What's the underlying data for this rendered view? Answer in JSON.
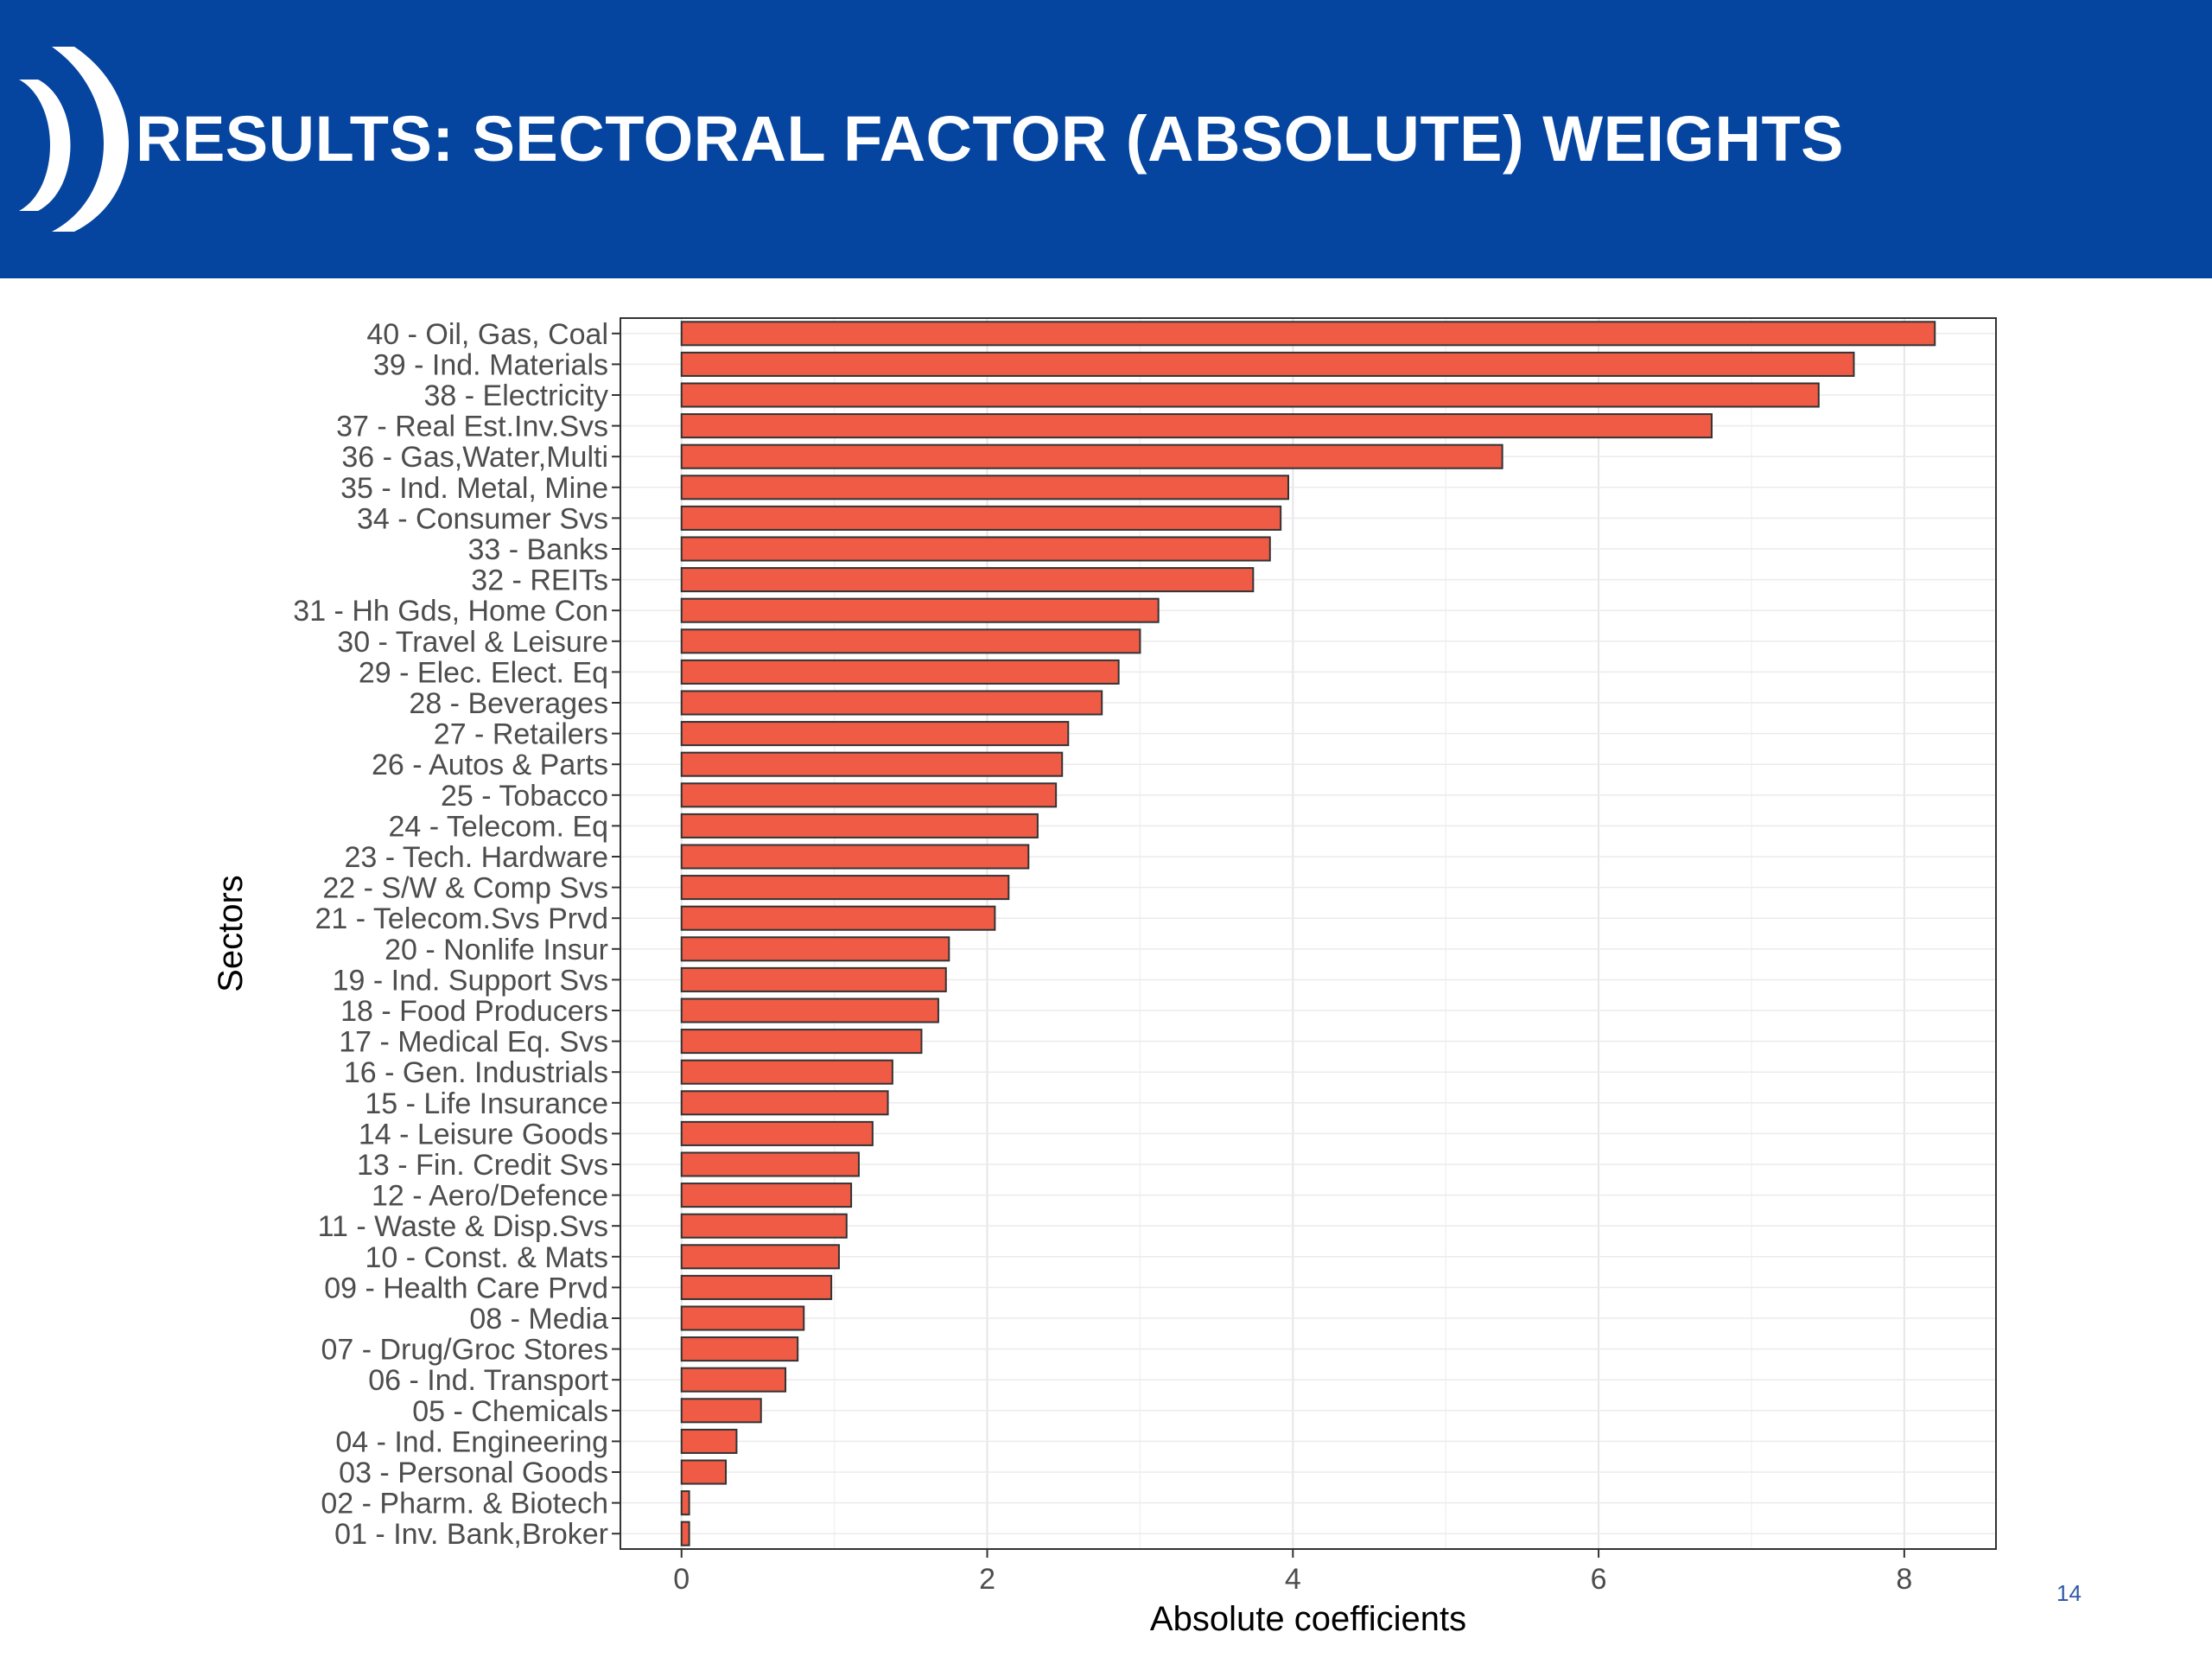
{
  "slide": {
    "title": "RESULTS: SECTORAL FACTOR (ABSOLUTE) WEIGHTS",
    "page_number": "14",
    "header_color": "#0545a0",
    "accent_color": "#ffffff"
  },
  "chart_data": {
    "type": "bar",
    "orientation": "horizontal",
    "title": "",
    "xlabel": "Absolute coefficients",
    "ylabel": "Sectors",
    "xlim": [
      -0.4,
      8.6
    ],
    "xticks": [
      0,
      2,
      4,
      6,
      8
    ],
    "grid": true,
    "bar_color": "#ef5b45",
    "categories": [
      "40 - Oil, Gas, Coal",
      "39 - Ind. Materials",
      "38 - Electricity",
      "37 - Real Est.Inv.Svs",
      "36 - Gas,Water,Multi",
      "35 - Ind. Metal, Mine",
      "34 - Consumer Svs",
      "33 - Banks",
      "32 - REITs",
      "31 - Hh Gds, Home Con",
      "30 - Travel & Leisure",
      "29 - Elec. Elect. Eq",
      "28 - Beverages",
      "27 - Retailers",
      "26 - Autos & Parts",
      "25 - Tobacco",
      "24 - Telecom. Eq",
      "23 - Tech. Hardware",
      "22 - S/W & Comp Svs",
      "21 - Telecom.Svs Prvd",
      "20 - Nonlife Insur",
      "19 - Ind. Support Svs",
      "18 - Food Producers",
      "17 - Medical Eq. Svs",
      "16 - Gen. Industrials",
      "15 - Life Insurance",
      "14 - Leisure Goods",
      "13 - Fin. Credit Svs",
      "12 - Aero/Defence",
      "11 - Waste & Disp.Svs",
      "10 - Const. & Mats",
      "09 - Health Care Prvd",
      "08 - Media",
      "07 - Drug/Groc Stores",
      "06 - Ind. Transport",
      "05 - Chemicals",
      "04 - Ind. Engineering",
      "03 - Personal Goods",
      "02 - Pharm. & Biotech",
      "01 - Inv. Bank,Broker"
    ],
    "values": [
      8.2,
      7.67,
      7.44,
      6.74,
      5.37,
      3.97,
      3.92,
      3.85,
      3.74,
      3.12,
      3.0,
      2.86,
      2.75,
      2.53,
      2.49,
      2.45,
      2.33,
      2.27,
      2.14,
      2.05,
      1.75,
      1.73,
      1.68,
      1.57,
      1.38,
      1.35,
      1.25,
      1.16,
      1.11,
      1.08,
      1.03,
      0.98,
      0.8,
      0.76,
      0.68,
      0.52,
      0.36,
      0.29,
      0.05,
      0.05
    ]
  }
}
